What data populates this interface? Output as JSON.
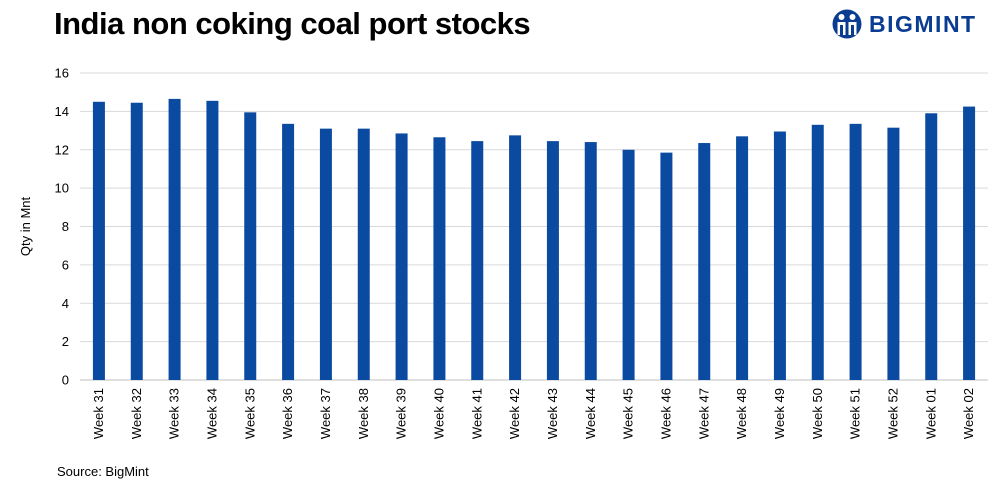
{
  "header": {
    "title": "India non coking coal port stocks",
    "brand": "BIGMINT",
    "brand_logo_icon": "bigmint-logo-icon",
    "brand_color": "#0a3d91"
  },
  "footer": {
    "source": "Source: BigMint"
  },
  "chart_data": {
    "type": "bar",
    "title": "India non coking coal port stocks",
    "xlabel": "",
    "ylabel": "Qty in Mnt",
    "ylim": [
      0,
      16
    ],
    "yticks": [
      0,
      2,
      4,
      6,
      8,
      10,
      12,
      14,
      16
    ],
    "grid": true,
    "legend": "none",
    "bar_color": "#0a4aa0",
    "categories": [
      "Week 31",
      "Week 32",
      "Week 33",
      "Week 34",
      "Week 35",
      "Week 36",
      "Week 37",
      "Week 38",
      "Week 39",
      "Week 40",
      "Week 41",
      "Week 42",
      "Week 43",
      "Week 44",
      "Week 45",
      "Week 46",
      "Week 47",
      "Week 48",
      "Week 49",
      "Week 50",
      "Week 51",
      "Week 52",
      "Week 01",
      "Week 02"
    ],
    "values": [
      14.5,
      14.45,
      14.65,
      14.55,
      13.95,
      13.35,
      13.1,
      13.1,
      12.85,
      12.65,
      12.45,
      12.75,
      12.45,
      12.4,
      12.0,
      11.85,
      12.35,
      12.7,
      12.95,
      13.3,
      13.35,
      13.15,
      13.9,
      14.25
    ]
  }
}
